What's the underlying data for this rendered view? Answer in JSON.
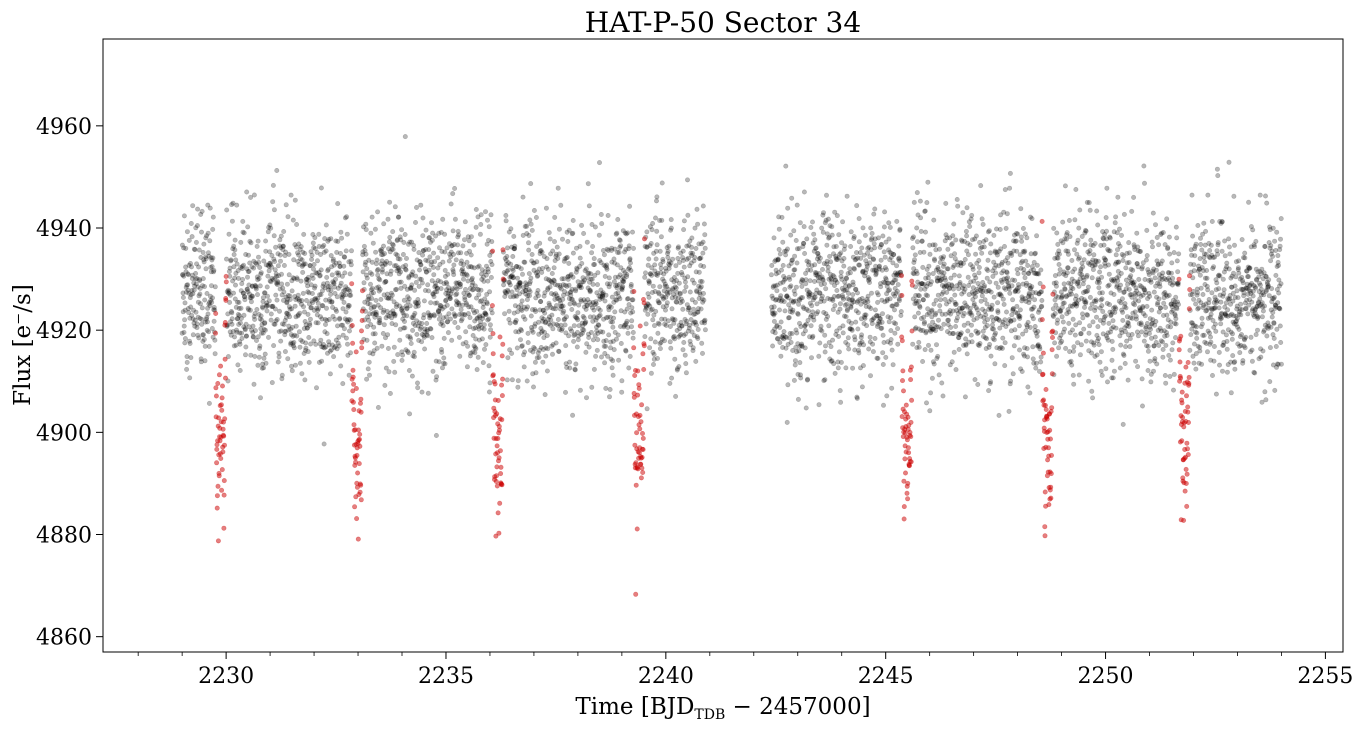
{
  "chart_data": {
    "type": "scatter",
    "title": "HAT-P-50 Sector 34",
    "xlabel": {
      "prefix": "Time [BJD",
      "subscript": "TDB",
      "suffix": " − 2457000]"
    },
    "ylabel": "Flux [e⁻/s]",
    "xlim": [
      2227.2,
      2255.4
    ],
    "ylim": [
      4857,
      4977
    ],
    "xticks": [
      2230,
      2235,
      2240,
      2245,
      2250,
      2255
    ],
    "yticks": [
      4860,
      4880,
      4900,
      4920,
      4940,
      4960
    ],
    "xtick_labels": [
      "2230",
      "2235",
      "2240",
      "2245",
      "2250",
      "2255"
    ],
    "ytick_labels": [
      "4860",
      "4880",
      "4900",
      "4920",
      "4940",
      "4960"
    ],
    "grid": false,
    "legend": "none",
    "segments": [
      {
        "x_start": 2229.0,
        "x_end": 2240.9
      },
      {
        "x_start": 2242.4,
        "x_end": 2254.0
      }
    ],
    "baseline_flux": 4927,
    "scatter_sigma": 8,
    "transit_depth": 30,
    "transit_duration_days": 0.25,
    "transit_midtimes": [
      2229.88,
      2232.98,
      2236.18,
      2239.39,
      2245.48,
      2248.68,
      2251.79
    ],
    "series": [
      {
        "color": "#000000",
        "alpha": 0.28
      },
      {
        "color": "#cc0000",
        "alpha": 0.5
      }
    ]
  }
}
